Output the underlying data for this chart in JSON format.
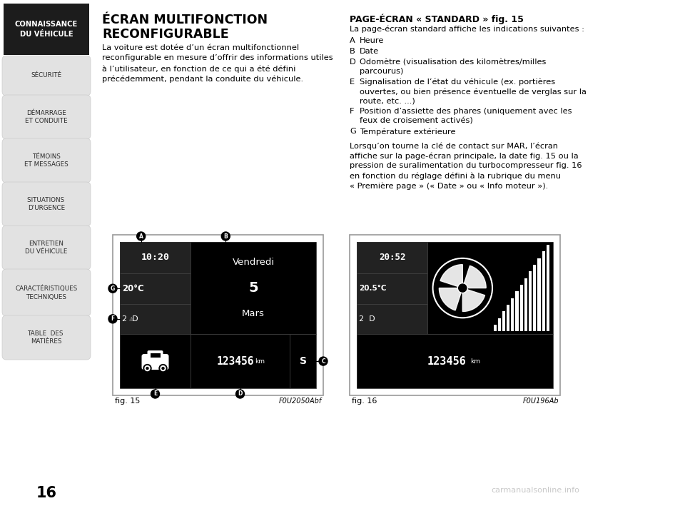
{
  "page_bg": "#ffffff",
  "page_number": "16",
  "title_line1": "ÉCRAN MULTIFONCTION",
  "title_line2": "RECONFIGURABLE",
  "body_text_lines": [
    "La voiture est dotée d’un écran multifonctionnel",
    "reconfigurable en mesure d’offrir des informations utiles",
    "à l’utilisateur, en fonction de ce qui a été défini",
    "précédemment, pendant la conduite du véhicule."
  ],
  "right_title": "PAGE-ÉCRAN « STANDARD » fig. 15",
  "right_intro": "La page-écran standard affiche les indications suivantes :",
  "right_items": [
    {
      "label": "A",
      "lines": [
        "Heure"
      ]
    },
    {
      "label": "B",
      "lines": [
        "Date"
      ]
    },
    {
      "label": "D",
      "lines": [
        "Odomètre (visualisation des kilomètres/milles",
        "parcourus)"
      ]
    },
    {
      "label": "E",
      "lines": [
        "Signalisation de l’état du véhicule (ex. portières",
        "ouvertes, ou bien présence éventuelle de verglas sur la",
        "route, etc. ...)"
      ]
    },
    {
      "label": "F",
      "lines": [
        "Position d’assiette des phares (uniquement avec les",
        "feux de croisement activés)"
      ]
    },
    {
      "label": "G",
      "lines": [
        "Température extérieure"
      ]
    }
  ],
  "right_paragraph_lines": [
    "Lorsqu’on tourne la clé de contact sur MAR, l’écran",
    "affiche sur la page-écran principale, la date fig. 15 ou la",
    "pression de suralimentation du turbocompresseur fig. 16",
    "en fonction du réglage défini à la rubrique du menu",
    "« Première page » (« Date » ou « Info moteur »)."
  ],
  "sidebar_items": [
    {
      "text": "CONNAISSANCE\nDU VÉHICULE",
      "active": true
    },
    {
      "text": "SÉCURITÉ",
      "active": false
    },
    {
      "text": "DÉMARRAGE\nET CONDUITE",
      "active": false
    },
    {
      "text": "TÉMOINS\nET MESSAGES",
      "active": false
    },
    {
      "text": "SITUATIONS \nD’URGENCE",
      "active": false
    },
    {
      "text": "ENTRETIEN\nDU VÉHICULE",
      "active": false
    },
    {
      "text": "CARACTÉRISTIQUES\nTECHNIQUES",
      "active": false
    },
    {
      "text": "TABLE  DES \nMATIÈRES",
      "active": false
    }
  ],
  "fig15_caption": "fig. 15",
  "fig15_code": "F0U2050Abf",
  "fig16_caption": "fig. 16",
  "fig16_code": "F0U196Ab"
}
